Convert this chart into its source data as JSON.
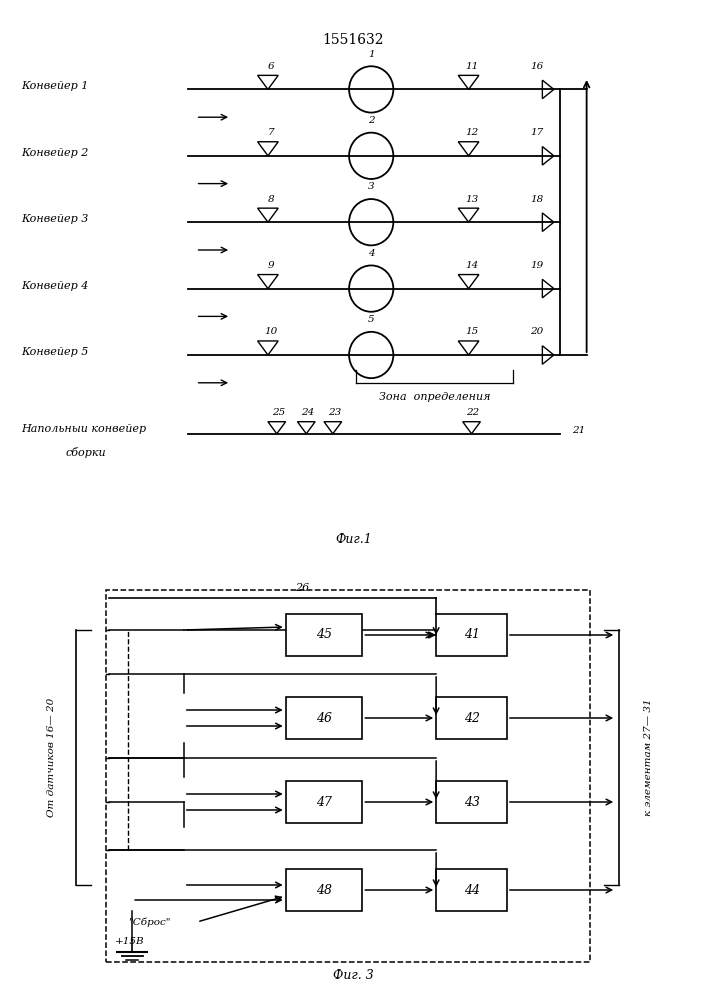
{
  "title": "1551632",
  "fig1_label": "Фиг.1",
  "fig3_label": "Фиг. 3",
  "conv_names": [
    "Конвейер 1",
    "Конвейер 2",
    "Конвейер 3",
    "Конвейер 4",
    "Конвейер 5"
  ],
  "left_sensors": [
    "6",
    "7",
    "8",
    "9",
    "10"
  ],
  "center_nums": [
    "1",
    "2",
    "3",
    "4",
    "5"
  ],
  "right_sensors": [
    "11",
    "12",
    "13",
    "14",
    "15"
  ],
  "exit_nums": [
    "16",
    "17",
    "18",
    "19",
    "20"
  ],
  "floor_label1": "Напольныи конвейер",
  "floor_label2": "сборки",
  "floor_sensors": [
    "25",
    "24",
    "23",
    "22"
  ],
  "floor_num": "21",
  "zone_label": "Зона  определения",
  "label_26": "26",
  "left_blocks": [
    "45",
    "46",
    "47",
    "48"
  ],
  "right_blocks": [
    "41",
    "42",
    "43",
    "44"
  ],
  "label_sbros": "\"Сброс\"",
  "label_15v": "+15В",
  "label_from": "От датчиков 16— 20",
  "label_to": "к элементам 27— 31",
  "bg_color": "#ffffff"
}
